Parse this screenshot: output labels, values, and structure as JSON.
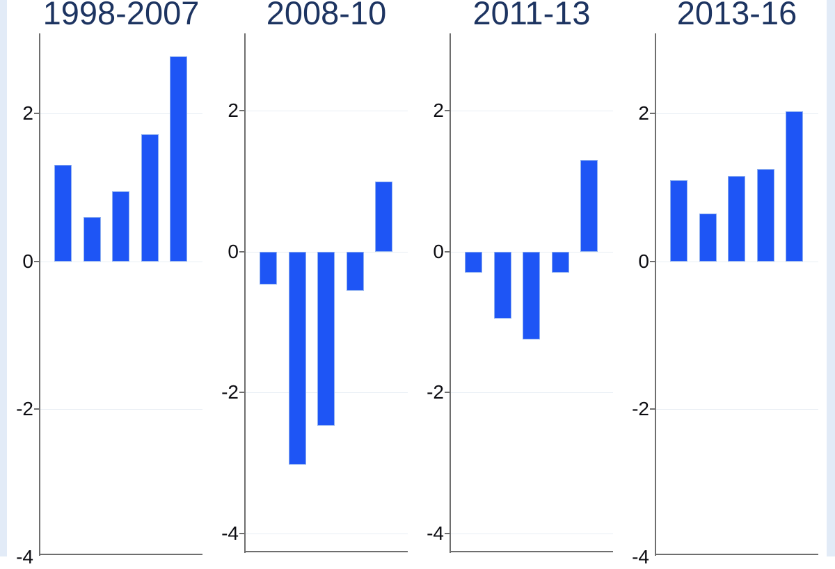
{
  "figure": {
    "kind": "small-multiple bar chart, four panels, no legend, no x-axis labels visible"
  },
  "colors": {
    "background": "#ffffff",
    "bar": "#1e55f5",
    "bar_edge": "#8fb0f0",
    "title": "#1d3461",
    "tick_label": "#0d0d12",
    "axis": "#6e6e6e",
    "grid": "#e8eef4",
    "side_band": "#e2ebf7"
  },
  "chart_data": [
    {
      "type": "bar",
      "title": "1998-2007",
      "values": [
        1.3,
        0.6,
        0.95,
        1.72,
        2.77
      ],
      "yticks": [
        2,
        0,
        -2,
        -4
      ],
      "ylim": [
        -3.96,
        3.08
      ],
      "grid": true,
      "legend": false
    },
    {
      "type": "bar",
      "title": "2008-10",
      "values": [
        -0.47,
        -3.03,
        -2.47,
        -0.56,
        1.0
      ],
      "yticks": [
        2,
        0,
        -2,
        -4
      ],
      "ylim": [
        -4.26,
        3.1
      ],
      "grid": true,
      "legend": false
    },
    {
      "type": "bar",
      "title": "2011-13",
      "values": [
        -0.3,
        -0.95,
        -1.25,
        -0.3,
        1.3
      ],
      "yticks": [
        2,
        0,
        -2,
        -4
      ],
      "ylim": [
        -4.26,
        3.1
      ],
      "grid": true,
      "legend": false
    },
    {
      "type": "bar",
      "title": "2013-16",
      "values": [
        1.1,
        0.65,
        1.15,
        1.25,
        2.03
      ],
      "yticks": [
        2,
        0,
        -2,
        -4
      ],
      "ylim": [
        -3.96,
        3.08
      ],
      "grid": true,
      "legend": false
    }
  ]
}
